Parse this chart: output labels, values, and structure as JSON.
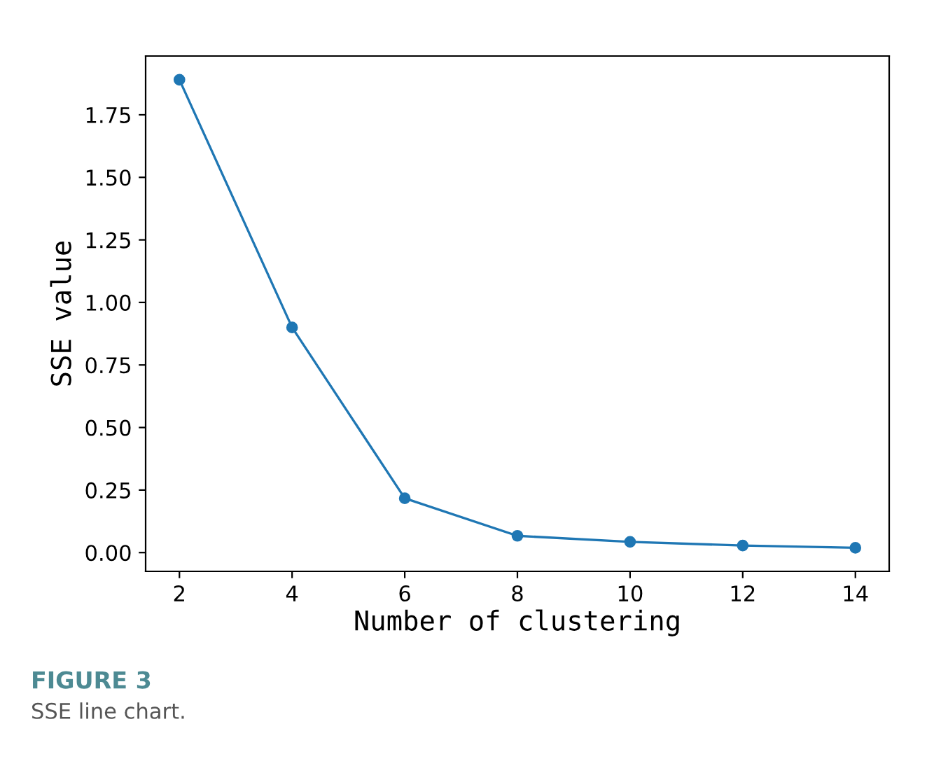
{
  "chart_data": {
    "type": "line",
    "xlabel": "Number of clustering",
    "ylabel": "SSE value",
    "x": [
      2,
      4,
      6,
      8,
      10,
      12,
      14
    ],
    "series": [
      {
        "color": "#1f77b4",
        "values": [
          1.89,
          0.9,
          0.217,
          0.067,
          0.043,
          0.028,
          0.019
        ]
      }
    ],
    "xlim": [
      1.4,
      14.6
    ],
    "ylim": [
      -0.075,
      1.985
    ],
    "xticks": [
      2,
      4,
      6,
      8,
      10,
      12,
      14
    ],
    "yticks": [
      {
        "value": 0,
        "label": "0.00"
      },
      {
        "value": 0.25,
        "label": "0.25"
      },
      {
        "value": 0.5,
        "label": "0.50"
      },
      {
        "value": 0.75,
        "label": "0.75"
      },
      {
        "value": 1,
        "label": "1.00"
      },
      {
        "value": 1.25,
        "label": "1.25"
      },
      {
        "value": 1.5,
        "label": "1.50"
      },
      {
        "value": 1.75,
        "label": "1.75"
      }
    ],
    "marker": "circle",
    "line_style": "solid",
    "grid": false,
    "annotations": [
      "FIGURE 3",
      "SSE line chart."
    ]
  }
}
